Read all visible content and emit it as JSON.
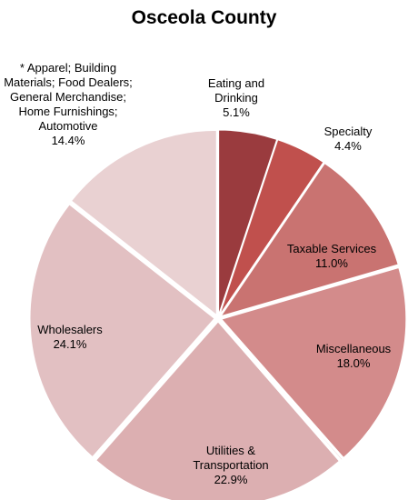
{
  "chart_data": {
    "type": "pie",
    "title": "Osceola County",
    "categories": [
      "Eating and Drinking",
      "Specialty",
      "Taxable Services",
      "Miscellaneous",
      null,
      "Utilities & Transportation",
      "Wholesalers",
      "* Apparel; Building Materials; Food Dealers; General Merchandise; Home Furnishings; Automotive"
    ],
    "values": [
      5.1,
      4.4,
      11.0,
      18.0,
      0.1,
      22.9,
      24.1,
      14.4
    ],
    "value_labels": [
      "5.1%",
      "4.4%",
      "11.0%",
      "18.0%",
      null,
      "22.9%",
      "24.1%",
      "14.4%"
    ],
    "colors": [
      "#9a3b3e",
      "#c0504d",
      "#c97371",
      "#d38b8b",
      "#d9a1a1",
      "#dcafb1",
      "#e2c0c2",
      "#e9d1d2"
    ]
  }
}
